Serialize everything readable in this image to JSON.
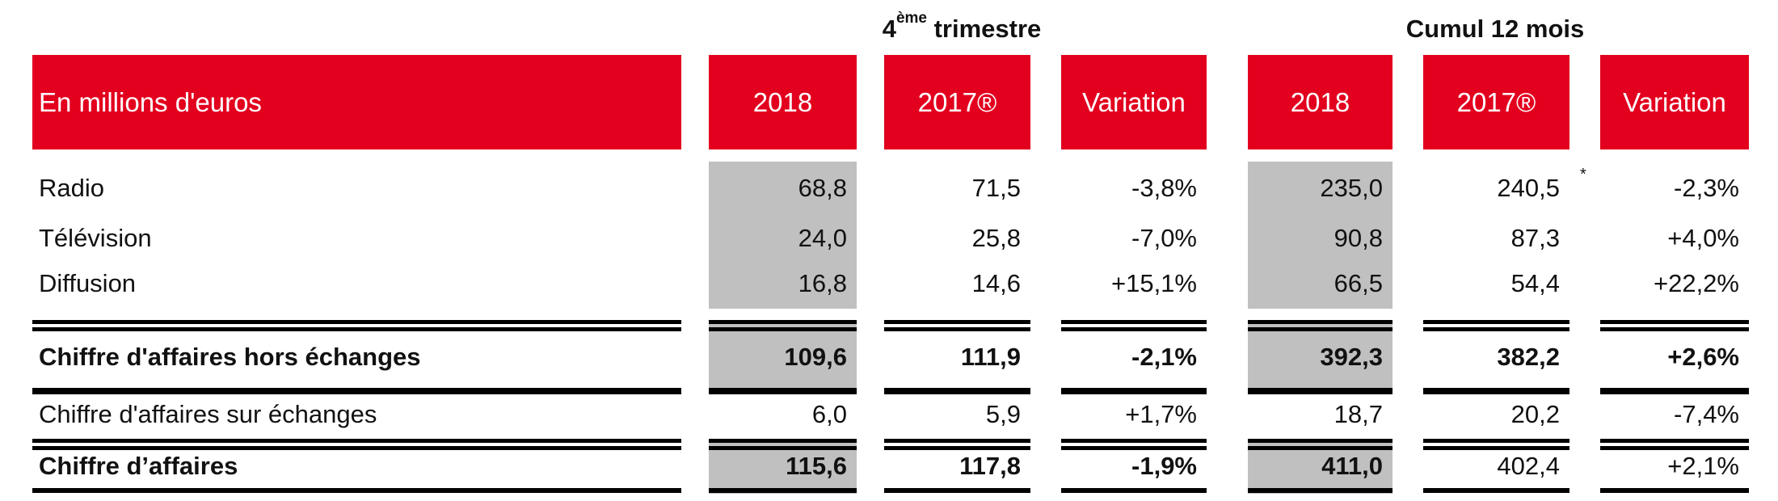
{
  "groups": {
    "q4": {
      "prefix": "4",
      "sup": "ème",
      "suffix": " trimestre"
    },
    "cumul": "Cumul 12 mois"
  },
  "header": {
    "label": "En millions d'euros",
    "columns": [
      "2018",
      "2017®",
      "Variation",
      "2018",
      "2017®",
      "Variation"
    ]
  },
  "rows": [
    {
      "label": "Radio",
      "values": [
        "68,8",
        "71,5",
        "-3,8%",
        "235,0",
        "240,5",
        "-2,3%"
      ],
      "note": "*",
      "bold": false
    },
    {
      "label": "Télévision",
      "values": [
        "24,0",
        "25,8",
        "-7,0%",
        "90,8",
        "87,3",
        "+4,0%"
      ],
      "bold": false
    },
    {
      "label": "Diffusion",
      "values": [
        "16,8",
        "14,6",
        "+15,1%",
        "66,5",
        "54,4",
        "+22,2%"
      ],
      "bold": false
    },
    {
      "label": "Chiffre d'affaires hors échanges",
      "values": [
        "109,6",
        "111,9",
        "-2,1%",
        "392,3",
        "382,2",
        "+2,6%"
      ],
      "bold": true
    },
    {
      "label": "Chiffre d'affaires sur échanges",
      "values": [
        "6,0",
        "5,9",
        "+1,7%",
        "18,7",
        "20,2",
        "-7,4%"
      ],
      "bold": false
    },
    {
      "label": "Chiffre d’affaires",
      "values": [
        "115,6",
        "117,8",
        "-1,9%",
        "411,0",
        "402,4",
        "+2,1%"
      ],
      "bold_cols": [
        true,
        true,
        true,
        true,
        true,
        false,
        false
      ],
      "bold": "mixed"
    }
  ],
  "colors": {
    "header_bg": "#e2001e",
    "highlight_bg": "#c0c0c0",
    "header_text": "#ffffff"
  }
}
